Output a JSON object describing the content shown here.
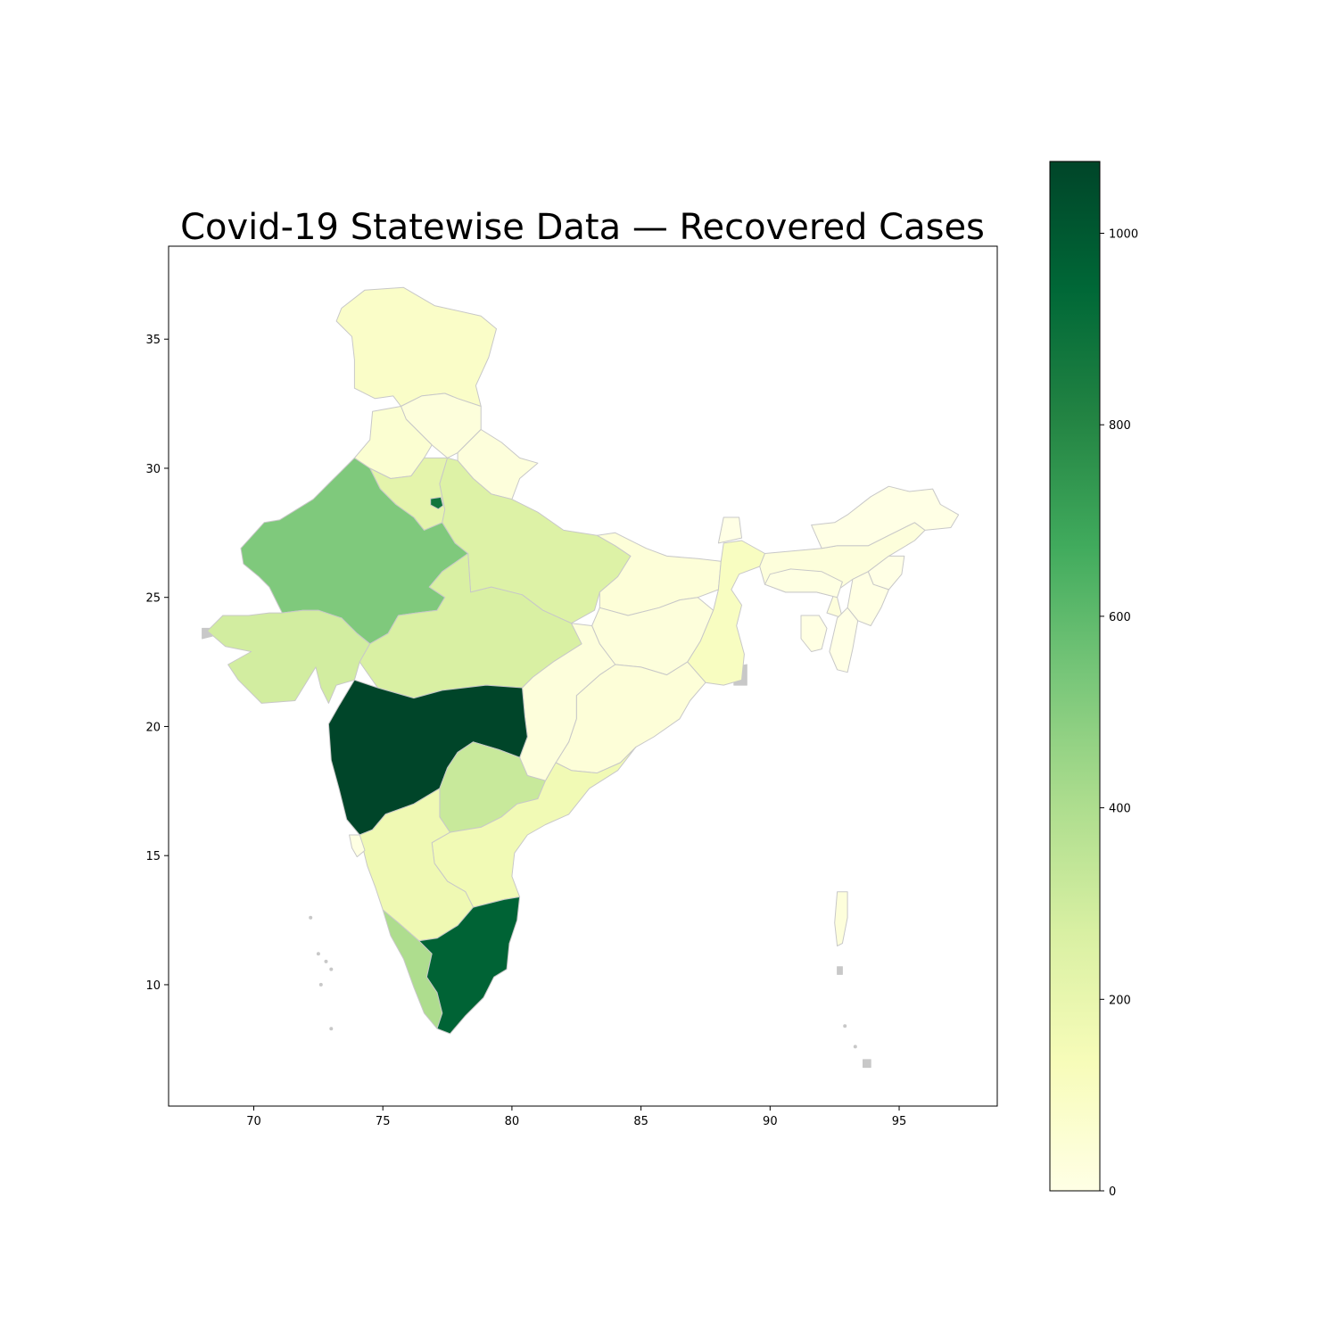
{
  "chart_data": {
    "type": "choropleth",
    "title": "Covid-19 Statewise Data — Recovered Cases",
    "xlim": [
      66.7,
      98.8
    ],
    "ylim": [
      5.3,
      38.6
    ],
    "x_ticks": [
      70,
      75,
      80,
      85,
      90,
      95
    ],
    "y_ticks": [
      10,
      15,
      20,
      25,
      30,
      35
    ],
    "colormap": "YlGn",
    "colorbar": {
      "min": 0,
      "max": 1075,
      "ticks": [
        0,
        200,
        400,
        600,
        800,
        1000
      ],
      "stops": [
        "#ffffe5",
        "#f7fcb9",
        "#d9f0a3",
        "#addd8e",
        "#78c679",
        "#41ab5d",
        "#238443",
        "#006837",
        "#004529"
      ]
    },
    "no_data_color": "#c8c8c8",
    "regions": [
      {
        "name": "Jammu and Kashmir",
        "value": 90
      },
      {
        "name": "Himachal Pradesh",
        "value": 30
      },
      {
        "name": "Punjab",
        "value": 60
      },
      {
        "name": "Uttarakhand",
        "value": 30
      },
      {
        "name": "Haryana",
        "value": 220
      },
      {
        "name": "Delhi",
        "value": 880
      },
      {
        "name": "Rajasthan",
        "value": 520
      },
      {
        "name": "Uttar Pradesh",
        "value": 250
      },
      {
        "name": "Gujarat",
        "value": 290
      },
      {
        "name": "Madhya Pradesh",
        "value": 270
      },
      {
        "name": "Bihar",
        "value": 40
      },
      {
        "name": "Jharkhand",
        "value": 30
      },
      {
        "name": "West Bengal",
        "value": 110
      },
      {
        "name": "Odisha",
        "value": 40
      },
      {
        "name": "Chhattisgarh",
        "value": 30
      },
      {
        "name": "Maharashtra",
        "value": 1075
      },
      {
        "name": "Telangana",
        "value": 320
      },
      {
        "name": "Andhra Pradesh",
        "value": 160
      },
      {
        "name": "Karnataka",
        "value": 170
      },
      {
        "name": "Goa",
        "value": 10
      },
      {
        "name": "Kerala",
        "value": 400
      },
      {
        "name": "Tamil Nadu",
        "value": 960
      },
      {
        "name": "Sikkim",
        "value": 0
      },
      {
        "name": "Assam",
        "value": 30
      },
      {
        "name": "Arunachal Pradesh",
        "value": 0
      },
      {
        "name": "Meghalaya",
        "value": 10
      },
      {
        "name": "Nagaland",
        "value": 0
      },
      {
        "name": "Manipur",
        "value": 5
      },
      {
        "name": "Mizoram",
        "value": 0
      },
      {
        "name": "Tripura",
        "value": 5
      },
      {
        "name": "Andaman and Nicobar Islands",
        "value": 30
      }
    ]
  }
}
